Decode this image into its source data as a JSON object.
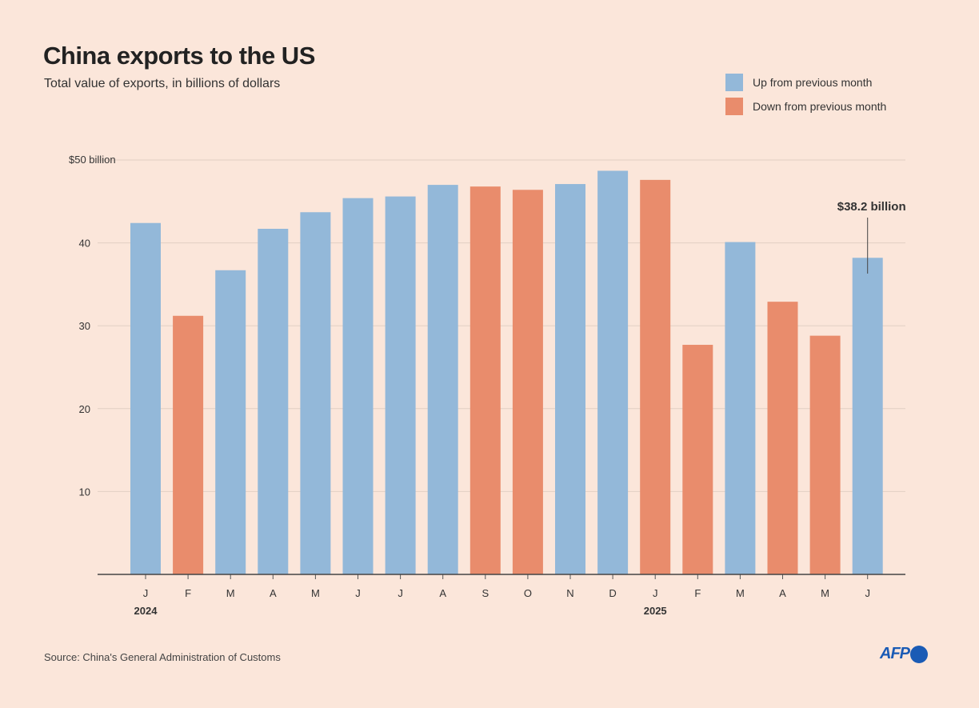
{
  "colors": {
    "background": "#fbe6da",
    "up": "#93b8d9",
    "down": "#e98c6c"
  },
  "source": "Source: China's General Administration of Customs",
  "logo": "AFP",
  "chart_data": {
    "type": "bar",
    "title": "China exports to the US",
    "subtitle": "Total value of exports, in billions of dollars",
    "ylim": [
      0,
      50
    ],
    "yticks": [
      10,
      20,
      30,
      40,
      50
    ],
    "ytick_labels": [
      "10",
      "20",
      "30",
      "40",
      "$50 billion"
    ],
    "grid": true,
    "legend_position": "top-right",
    "legend": [
      {
        "key": "up",
        "label": "Up from previous month"
      },
      {
        "key": "down",
        "label": "Down from previous month"
      }
    ],
    "categories": [
      "J",
      "F",
      "M",
      "A",
      "M",
      "J",
      "J",
      "A",
      "S",
      "O",
      "N",
      "D",
      "J",
      "F",
      "M",
      "A",
      "M",
      "J"
    ],
    "year_labels": [
      {
        "index": 0,
        "label": "2024"
      },
      {
        "index": 12,
        "label": "2025"
      }
    ],
    "values": [
      42.4,
      31.2,
      36.7,
      41.7,
      43.7,
      45.4,
      45.6,
      47.0,
      46.8,
      46.4,
      47.1,
      48.7,
      47.6,
      27.7,
      40.1,
      32.9,
      28.8,
      38.2
    ],
    "direction": [
      "up",
      "down",
      "up",
      "up",
      "up",
      "up",
      "up",
      "up",
      "down",
      "down",
      "up",
      "up",
      "down",
      "down",
      "up",
      "down",
      "down",
      "up"
    ],
    "annotation": {
      "index": 17,
      "label": "$38.2 billion"
    }
  }
}
